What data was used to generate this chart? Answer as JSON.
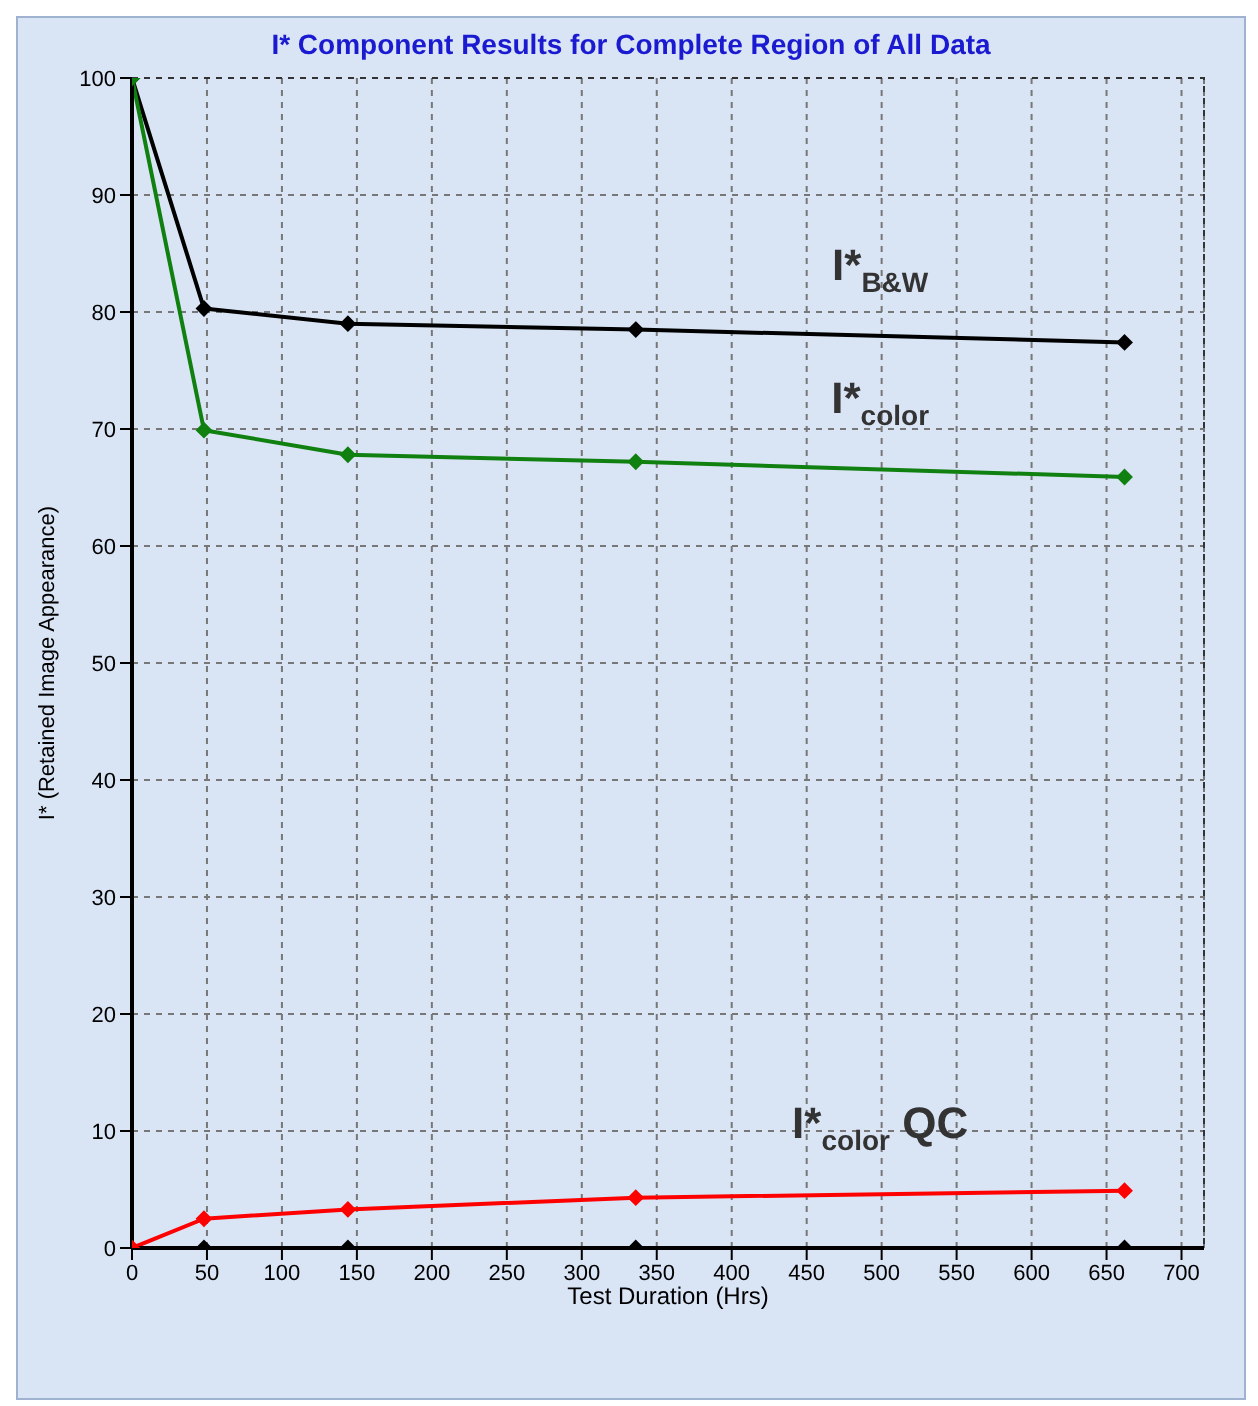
{
  "chart_data": {
    "type": "line",
    "title": "I* Component Results for Complete Region of All Data",
    "xlabel": "Test Duration (Hrs)",
    "ylabel": "I* (Retained Image Appearance)",
    "x": [
      0,
      48,
      144,
      336,
      662
    ],
    "series": [
      {
        "name": "I*$_{B&W}$",
        "color": "#000000",
        "values": [
          100,
          80.3,
          79,
          78.5,
          77.4
        ]
      },
      {
        "name": "I*$_{color}$",
        "color": "#108010",
        "values": [
          100,
          69.9,
          67.8,
          67.2,
          65.9
        ]
      },
      {
        "name": "I*$_{color}$ QC",
        "color": "#ff0000",
        "values": [
          0,
          2.5,
          3.3,
          4.3,
          4.9
        ]
      },
      {
        "type": "scatter",
        "color": "#000000",
        "x": [
          48,
          144,
          336,
          662
        ],
        "values": [
          0,
          0,
          0,
          0
        ]
      }
    ],
    "xlim": [
      0,
      715
    ],
    "ylim": [
      0,
      100
    ],
    "xticks": [
      0,
      50,
      100,
      150,
      200,
      250,
      300,
      350,
      400,
      450,
      500,
      550,
      600,
      650,
      700
    ],
    "yticks": [
      0,
      10,
      20,
      30,
      40,
      50,
      60,
      70,
      80,
      90,
      100
    ],
    "grid": true,
    "marker": "diamond",
    "line_style": "solid"
  }
}
